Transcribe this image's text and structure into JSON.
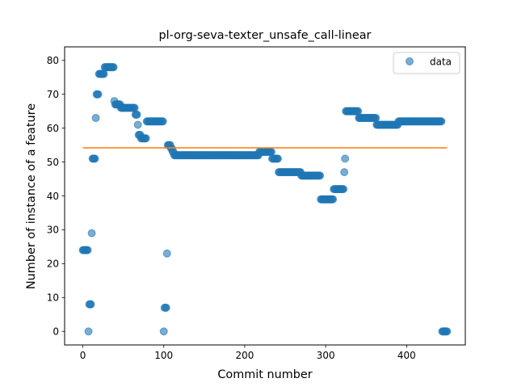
{
  "chart_data": {
    "type": "scatter",
    "title": "pl-org-seva-texter_unsafe_call-linear",
    "xlabel": "Commit number",
    "ylabel": "Number of instance of a feature",
    "xlim": [
      -22.5,
      472.5
    ],
    "ylim": [
      -4,
      84
    ],
    "xticks": [
      0,
      100,
      200,
      300,
      400
    ],
    "yticks": [
      0,
      10,
      20,
      30,
      40,
      50,
      60,
      70,
      80
    ],
    "xtick_labels": [
      "0",
      "100",
      "200",
      "300",
      "400"
    ],
    "ytick_labels": [
      "0",
      "10",
      "20",
      "30",
      "40",
      "50",
      "60",
      "70",
      "80"
    ],
    "legend": {
      "position": "top-right",
      "entries": [
        {
          "label": "data",
          "color": "#1f77b4"
        }
      ]
    },
    "series": [
      {
        "name": "data",
        "kind": "scatter",
        "color": "#1f77b4",
        "segments": [
          {
            "start": 0,
            "end": 6,
            "y": 24
          },
          {
            "start": 7,
            "end": 7,
            "y": 0
          },
          {
            "start": 8,
            "end": 10,
            "y": 8
          },
          {
            "start": 11,
            "end": 11,
            "y": 29
          },
          {
            "start": 12,
            "end": 15,
            "y": 51
          },
          {
            "start": 16,
            "end": 16,
            "y": 63
          },
          {
            "start": 17,
            "end": 19,
            "y": 70
          },
          {
            "start": 20,
            "end": 26,
            "y": 76
          },
          {
            "start": 27,
            "end": 38,
            "y": 78
          },
          {
            "start": 39,
            "end": 39,
            "y": 68
          },
          {
            "start": 40,
            "end": 46,
            "y": 67
          },
          {
            "start": 47,
            "end": 64,
            "y": 66
          },
          {
            "start": 65,
            "end": 67,
            "y": 64
          },
          {
            "start": 68,
            "end": 68,
            "y": 61
          },
          {
            "start": 69,
            "end": 71,
            "y": 58
          },
          {
            "start": 72,
            "end": 78,
            "y": 57
          },
          {
            "start": 79,
            "end": 99,
            "y": 62
          },
          {
            "start": 100,
            "end": 100,
            "y": 0
          },
          {
            "start": 101,
            "end": 103,
            "y": 7
          },
          {
            "start": 104,
            "end": 104,
            "y": 23
          },
          {
            "start": 105,
            "end": 108,
            "y": 55
          },
          {
            "start": 109,
            "end": 110,
            "y": 54
          },
          {
            "start": 111,
            "end": 112,
            "y": 53
          },
          {
            "start": 113,
            "end": 217,
            "y": 52
          },
          {
            "start": 218,
            "end": 233,
            "y": 53
          },
          {
            "start": 234,
            "end": 241,
            "y": 51
          },
          {
            "start": 242,
            "end": 269,
            "y": 47
          },
          {
            "start": 270,
            "end": 293,
            "y": 46
          },
          {
            "start": 294,
            "end": 309,
            "y": 39
          },
          {
            "start": 310,
            "end": 322,
            "y": 42
          },
          {
            "start": 323,
            "end": 323,
            "y": 47
          },
          {
            "start": 324,
            "end": 324,
            "y": 51
          },
          {
            "start": 325,
            "end": 340,
            "y": 65
          },
          {
            "start": 341,
            "end": 362,
            "y": 63
          },
          {
            "start": 363,
            "end": 389,
            "y": 61
          },
          {
            "start": 390,
            "end": 443,
            "y": 62
          },
          {
            "start": 444,
            "end": 450,
            "y": 0
          }
        ]
      },
      {
        "name": "",
        "kind": "line",
        "color": "#ff7f0e",
        "x": [
          0,
          450
        ],
        "y": [
          54.2,
          54.2
        ]
      }
    ]
  }
}
